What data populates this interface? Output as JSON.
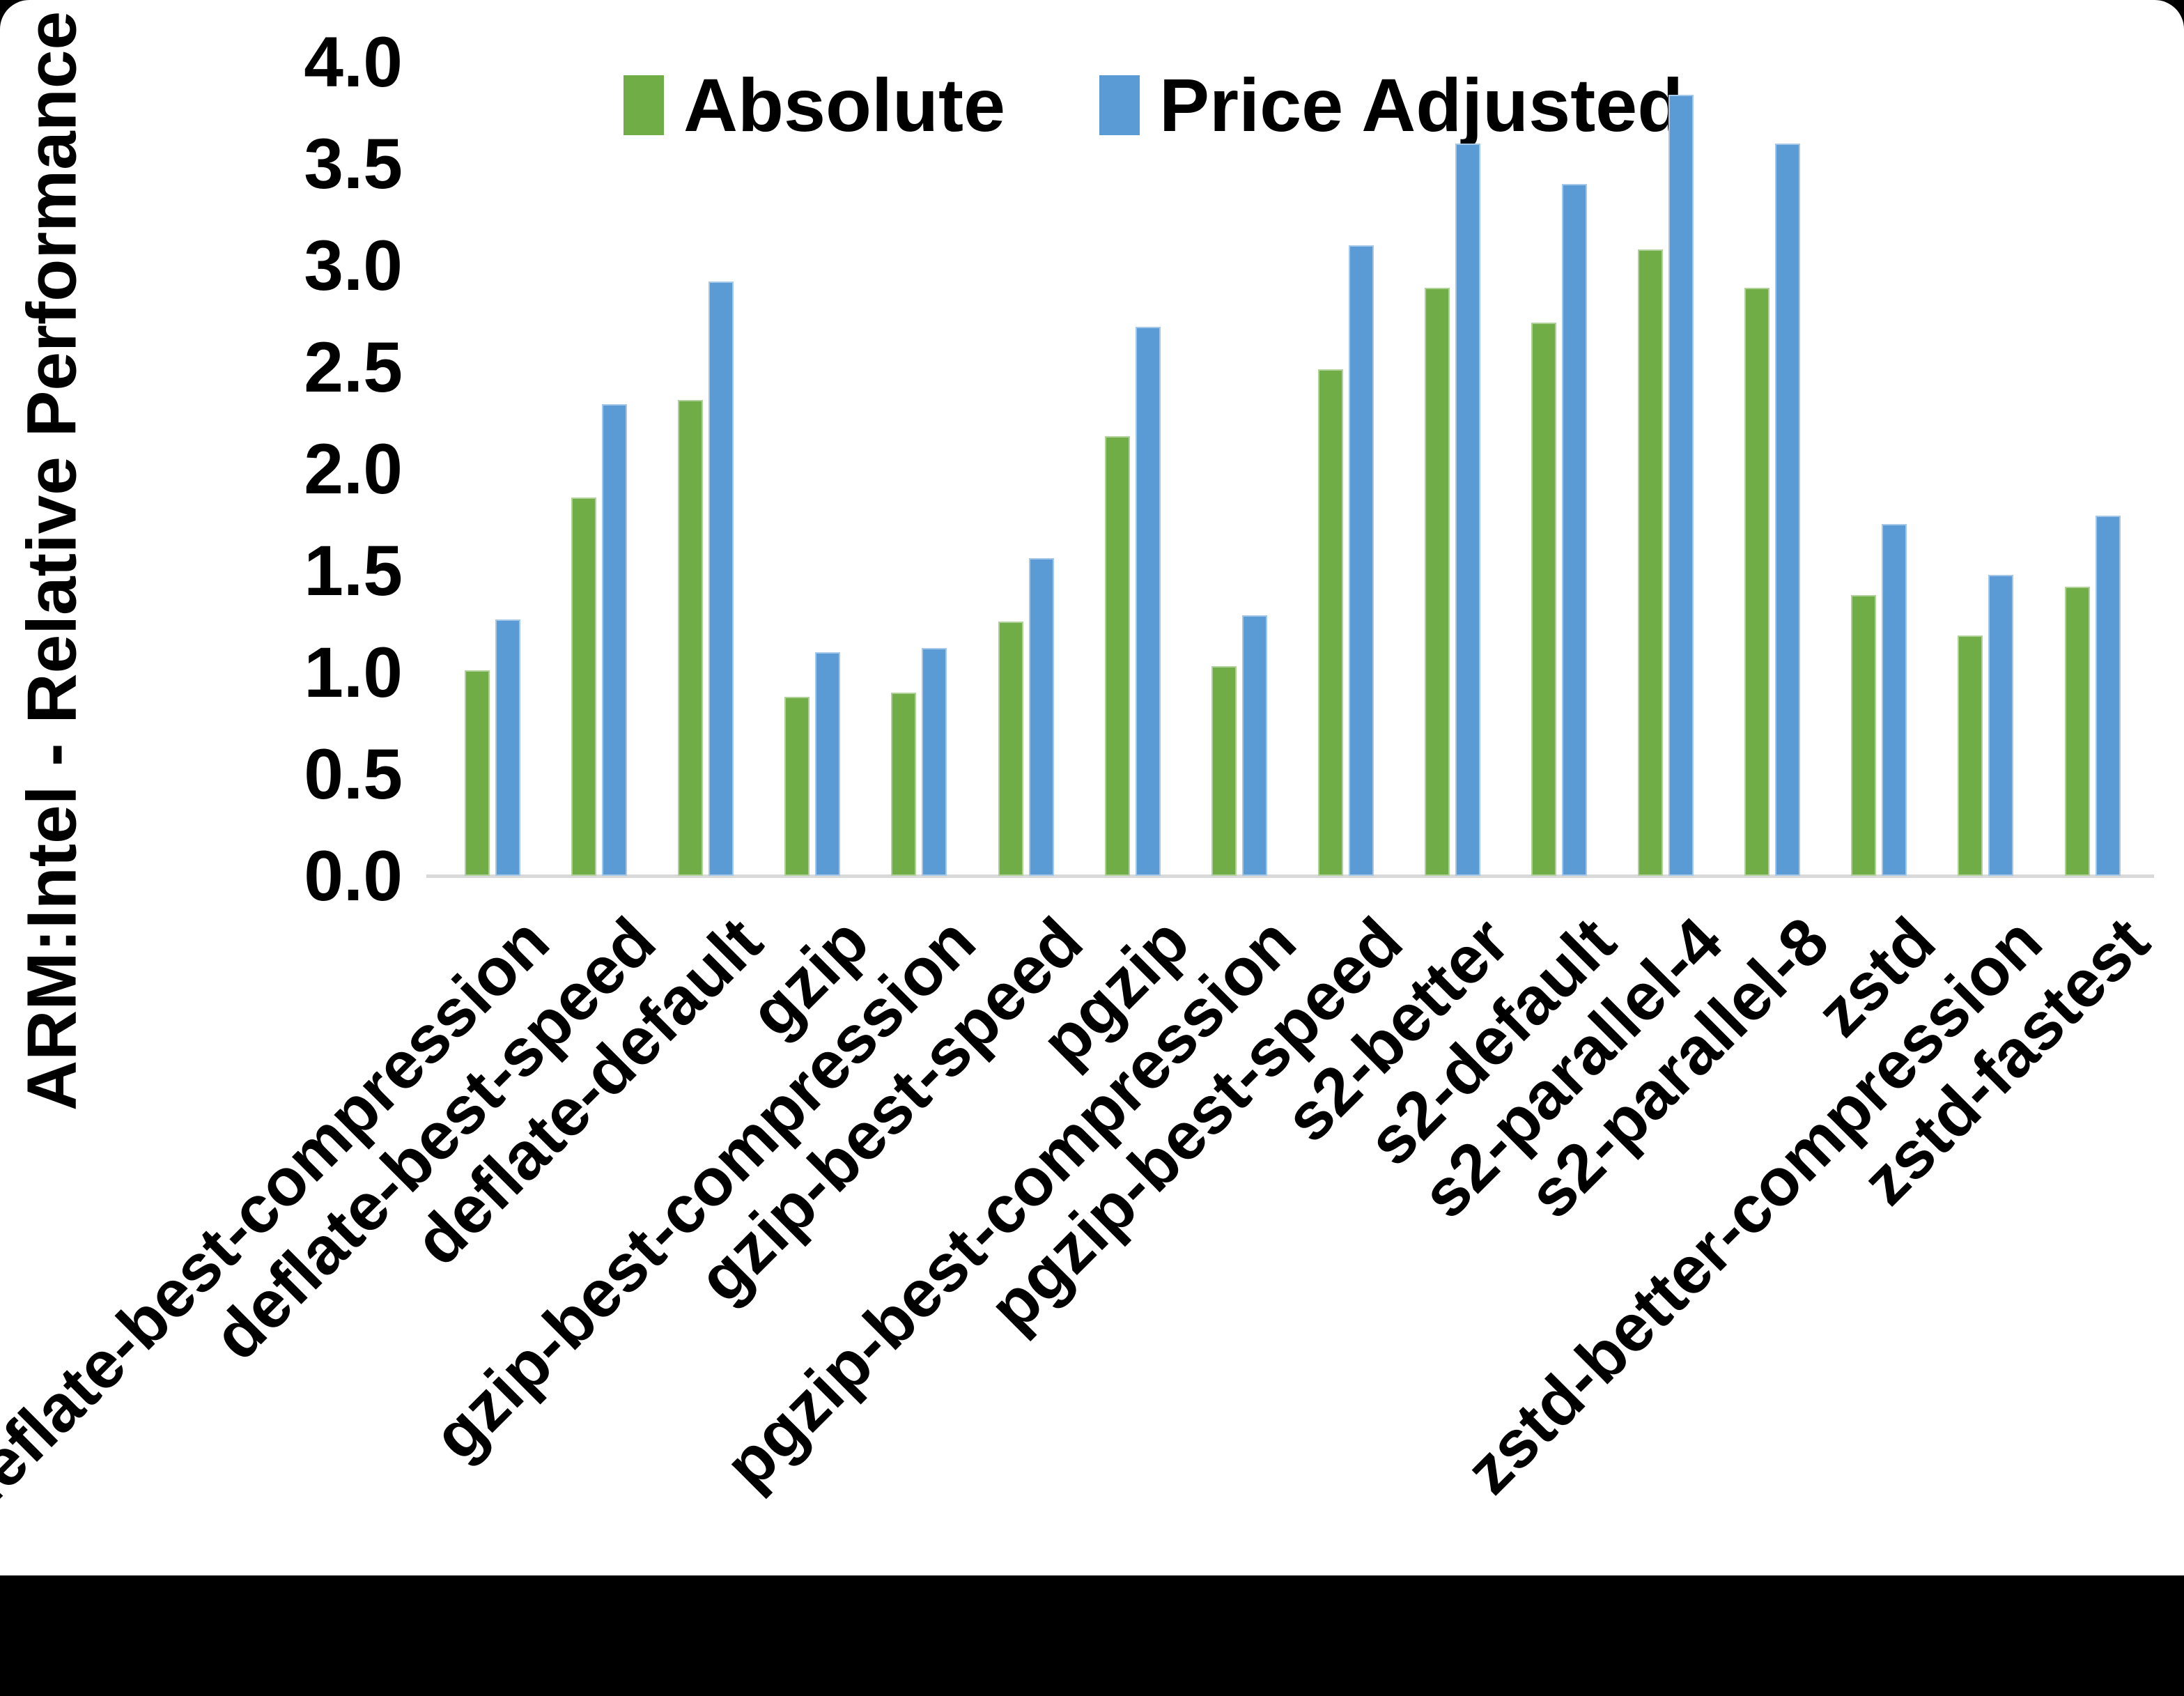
{
  "chart_data": {
    "type": "bar",
    "title": "",
    "xlabel": "",
    "ylabel": "ARM:Intel - Relative Performance",
    "ylim": [
      0.0,
      4.0
    ],
    "ytick_step": 0.5,
    "yticks": [
      "0.0",
      "0.5",
      "1.0",
      "1.5",
      "2.0",
      "2.5",
      "3.0",
      "3.5",
      "4.0"
    ],
    "grid": false,
    "legend_position": "top-center",
    "categories": [
      "deflate-best-compression",
      "deflate-best-speed",
      "deflate-default",
      "gzip",
      "gzip-best-compression",
      "gzip-best-speed",
      "pgzip",
      "pgzip-best-compression",
      "pgzip-best-speed",
      "s2-better",
      "s2-default",
      "s2-parallel-4",
      "s2-parallel-8",
      "zstd",
      "zstd-better-compression",
      "zstd-fastest"
    ],
    "series": [
      {
        "name": "Absolute",
        "color": "#70AD47",
        "values": [
          1.01,
          1.86,
          2.34,
          0.88,
          0.9,
          1.25,
          2.16,
          1.03,
          2.49,
          2.89,
          2.72,
          3.08,
          2.89,
          1.38,
          1.18,
          1.42
        ]
      },
      {
        "name": "Price Adjusted",
        "color": "#5B9BD5",
        "values": [
          1.26,
          2.32,
          2.92,
          1.1,
          1.12,
          1.56,
          2.7,
          1.28,
          3.1,
          3.6,
          3.4,
          3.84,
          3.6,
          1.73,
          1.48,
          1.77
        ]
      }
    ]
  },
  "colors": {
    "background": "#FFFFFF",
    "frame": "#000000",
    "baseline": "#D9D9D9",
    "text": "#000000"
  }
}
